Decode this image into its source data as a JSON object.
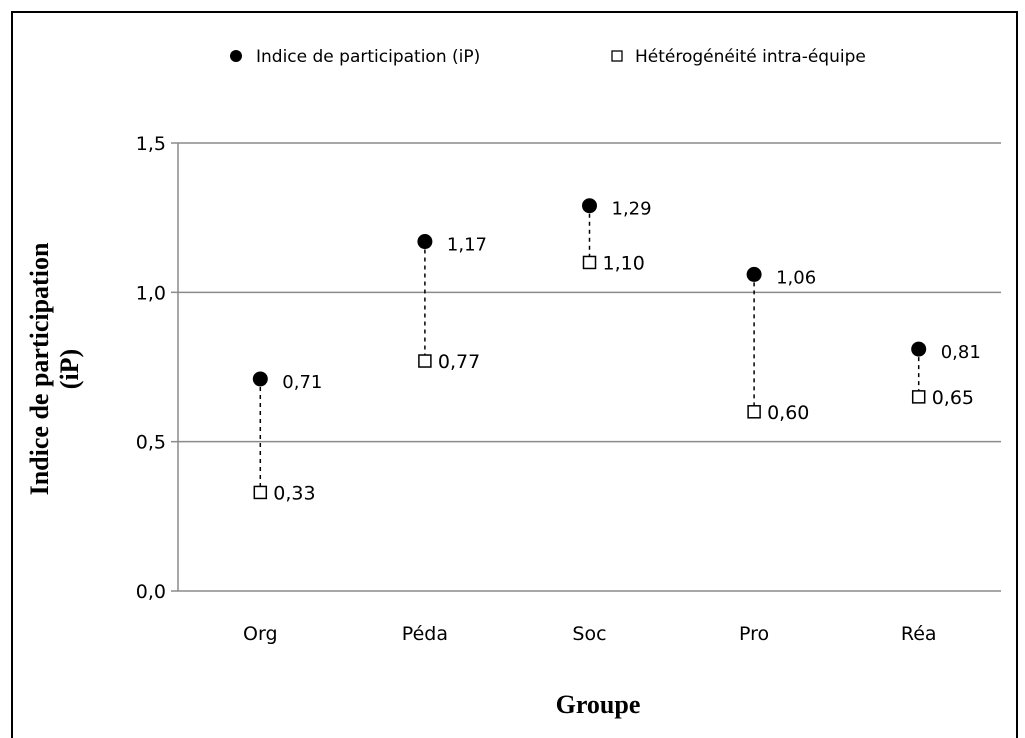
{
  "chart_data": {
    "type": "scatter",
    "categories": [
      "Org",
      "Péda",
      "Soc",
      "Pro",
      "Réa"
    ],
    "series": [
      {
        "name": "Indice de participation (iP)",
        "marker": "filled-circle",
        "values": [
          0.71,
          1.17,
          1.29,
          1.06,
          0.81
        ]
      },
      {
        "name": "Hétérogénéité intra-équipe",
        "marker": "open-square",
        "values": [
          0.33,
          0.77,
          1.1,
          0.6,
          0.65
        ]
      }
    ],
    "point_labels": [
      [
        "0,71",
        "1,17",
        "1,29",
        "1,06",
        "0,81"
      ],
      [
        "0,33",
        "0,77",
        "1,10",
        "0,60",
        "0,65"
      ]
    ],
    "ylim": [
      0,
      1.5
    ],
    "yticks": [
      0,
      0.5,
      1.0,
      1.5
    ],
    "ytick_labels": [
      "0,0",
      "0,5",
      "1,0",
      "1,5"
    ],
    "xlabel": "Groupe",
    "ylabel_lines": [
      "Indice de participation",
      "(iP)"
    ],
    "grid": true,
    "legend_position": "top",
    "connector": "dashed vertical line between the two series for each category"
  }
}
